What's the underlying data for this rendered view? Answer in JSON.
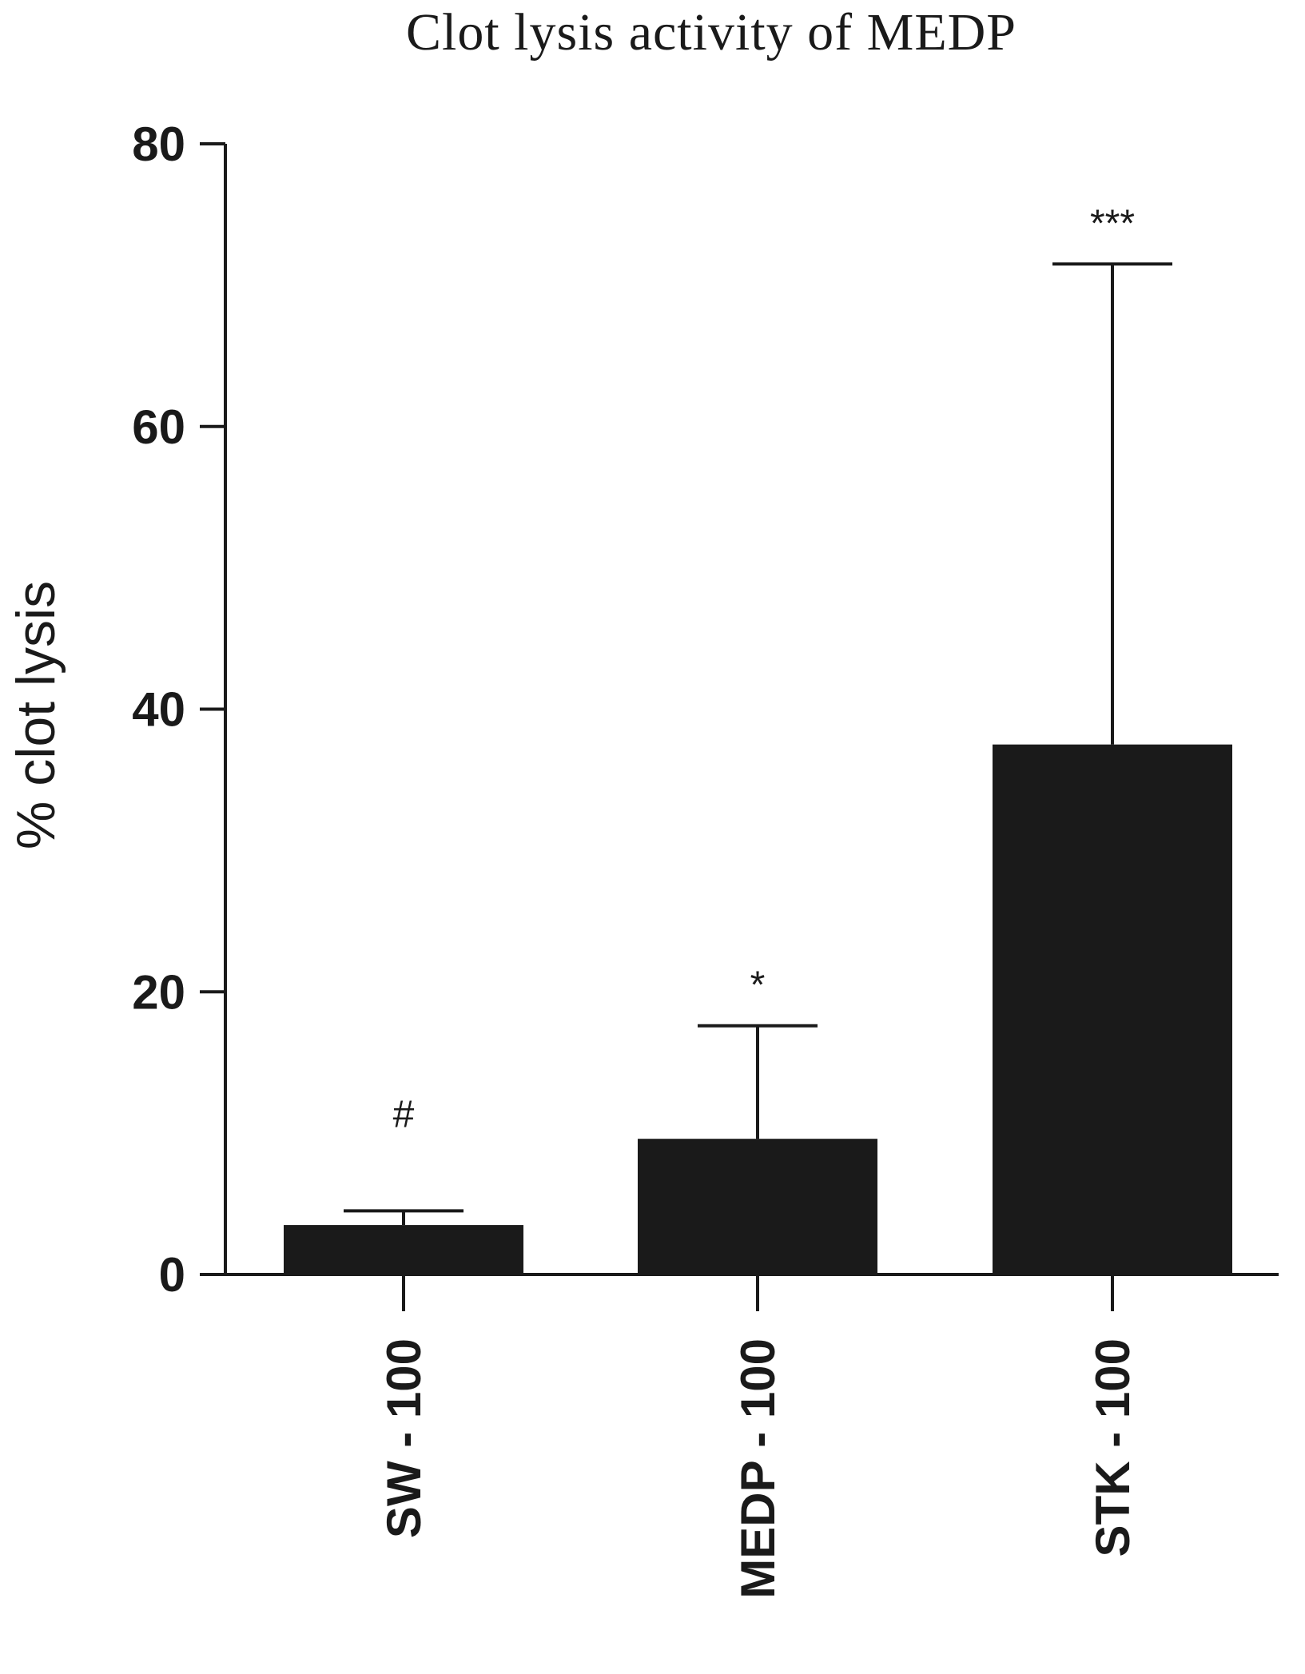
{
  "chart_data": {
    "type": "bar",
    "title": "Clot lysis activity of MEDP",
    "xlabel": "",
    "ylabel": "% clot lysis",
    "ylim": [
      0,
      80
    ],
    "yticks": [
      0,
      20,
      40,
      60,
      80
    ],
    "categories": [
      "SW - 100",
      "MEDP - 100",
      "STK - 100"
    ],
    "values": [
      3.5,
      9.6,
      37.5
    ],
    "error_upper": [
      1.0,
      8.0,
      34.0
    ],
    "annotations": [
      "#",
      "*",
      "***"
    ],
    "grid": false,
    "bar_color": "#1a1a1a"
  }
}
